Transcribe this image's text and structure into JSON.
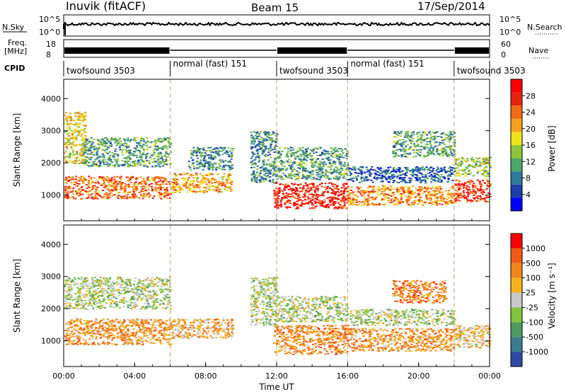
{
  "header": {
    "site": "Inuvik (fitACF)",
    "beam": "Beam 15",
    "date": "17/Sep/2014"
  },
  "top_panels": {
    "nsky_label": "N.Sky",
    "nsky_ticks": [
      "10^5",
      "10^0"
    ],
    "nsearch_label": "N.Search",
    "nsearch_ticks": [
      "10^5",
      "10^0"
    ],
    "freq_label_1": "Freq.",
    "freq_label_2": "[MHz]",
    "freq_ticks": [
      "18",
      "8"
    ],
    "nave_label": "Nave",
    "nave_ticks": [
      "60",
      "0"
    ],
    "cpid_label": "CPID",
    "cpid_segments": [
      {
        "label": "twofsound 3503",
        "start": 0,
        "end": 6
      },
      {
        "label": "normal (fast) 151",
        "start": 6,
        "end": 12
      },
      {
        "label": "twofsound 3503",
        "start": 12,
        "end": 16
      },
      {
        "label": "normal (fast) 151",
        "start": 16,
        "end": 22
      },
      {
        "label": "twofsound 3503",
        "start": 22,
        "end": 24
      }
    ]
  },
  "chart_data": [
    {
      "type": "heatmap",
      "panel": "power",
      "ylabel": "Slant Range [km]",
      "yticks": [
        "1000",
        "2000",
        "3000",
        "4000"
      ],
      "ylim": [
        200,
        4600
      ],
      "xlim": [
        0,
        24
      ],
      "colorbar_label": "Power [dB]",
      "colorbar_ticks": [
        "28",
        "24",
        "20",
        "16",
        "12",
        "8",
        "4"
      ],
      "colorbar_colors": [
        "#0000ff",
        "#1c3fa8",
        "#2e7a9a",
        "#4ea66a",
        "#8fc63b",
        "#f2e41c",
        "#f7a21b",
        "#f36b12",
        "#e8240e",
        "#ff0000"
      ],
      "bands": [
        {
          "x0": 0.0,
          "x1": 6.0,
          "y0": 900,
          "y1": 1600,
          "level": 0.75
        },
        {
          "x0": 0.0,
          "x1": 1.2,
          "y0": 2000,
          "y1": 3600,
          "level": 0.55
        },
        {
          "x0": 1.0,
          "x1": 6.0,
          "y0": 1900,
          "y1": 2800,
          "level": 0.35
        },
        {
          "x0": 6.0,
          "x1": 9.5,
          "y0": 1100,
          "y1": 1700,
          "level": 0.65
        },
        {
          "x0": 7.0,
          "x1": 9.5,
          "y0": 1800,
          "y1": 2500,
          "level": 0.3
        },
        {
          "x0": 10.5,
          "x1": 12.0,
          "y0": 1400,
          "y1": 3000,
          "level": 0.3
        },
        {
          "x0": 11.8,
          "x1": 16.0,
          "y0": 600,
          "y1": 1400,
          "level": 0.9
        },
        {
          "x0": 12.0,
          "x1": 16.0,
          "y0": 1500,
          "y1": 2500,
          "level": 0.35
        },
        {
          "x0": 16.0,
          "x1": 22.0,
          "y0": 700,
          "y1": 1300,
          "level": 0.7
        },
        {
          "x0": 16.0,
          "x1": 22.0,
          "y0": 1400,
          "y1": 1900,
          "level": 0.2
        },
        {
          "x0": 18.5,
          "x1": 22.0,
          "y0": 2200,
          "y1": 3000,
          "level": 0.35
        },
        {
          "x0": 22.0,
          "x1": 24.0,
          "y0": 800,
          "y1": 1500,
          "level": 0.85
        },
        {
          "x0": 22.0,
          "x1": 24.0,
          "y0": 1600,
          "y1": 2200,
          "level": 0.45
        }
      ]
    },
    {
      "type": "heatmap",
      "panel": "velocity",
      "ylabel": "Slant Range [km]",
      "xlabel": "Time UT",
      "xticks": [
        "00:00",
        "04:00",
        "08:00",
        "12:00",
        "16:00",
        "20:00",
        "00:00"
      ],
      "yticks": [
        "1000",
        "2000",
        "3000",
        "4000"
      ],
      "ylim": [
        200,
        4600
      ],
      "xlim": [
        0,
        24
      ],
      "colorbar_label": "Velocity [m s⁻¹]",
      "colorbar_ticks": [
        "1000",
        "500",
        "100",
        "25",
        "-25",
        "-100",
        "-500",
        "-1000"
      ],
      "colorbar_colors": [
        "#2c4aa0",
        "#3a7d8a",
        "#4f9a5e",
        "#7fc63e",
        "#c8c8c8",
        "#f7b21b",
        "#f0861a",
        "#f05a14",
        "#ff0000"
      ],
      "bands": [
        {
          "x0": 0.0,
          "x1": 6.0,
          "y0": 900,
          "y1": 1700,
          "level": 0.7
        },
        {
          "x0": 0.0,
          "x1": 6.0,
          "y0": 2000,
          "y1": 3000,
          "level": 0.45
        },
        {
          "x0": 6.0,
          "x1": 9.5,
          "y0": 1100,
          "y1": 1700,
          "level": 0.65
        },
        {
          "x0": 10.5,
          "x1": 12.0,
          "y0": 1500,
          "y1": 3000,
          "level": 0.45
        },
        {
          "x0": 11.8,
          "x1": 16.0,
          "y0": 600,
          "y1": 1500,
          "level": 0.72
        },
        {
          "x0": 12.0,
          "x1": 16.0,
          "y0": 1600,
          "y1": 2400,
          "level": 0.45
        },
        {
          "x0": 16.0,
          "x1": 22.0,
          "y0": 700,
          "y1": 1400,
          "level": 0.7
        },
        {
          "x0": 16.0,
          "x1": 22.0,
          "y0": 1500,
          "y1": 2000,
          "level": 0.45
        },
        {
          "x0": 18.5,
          "x1": 21.5,
          "y0": 2200,
          "y1": 2900,
          "level": 0.75
        },
        {
          "x0": 22.0,
          "x1": 24.0,
          "y0": 800,
          "y1": 1500,
          "level": 0.6
        }
      ]
    }
  ]
}
